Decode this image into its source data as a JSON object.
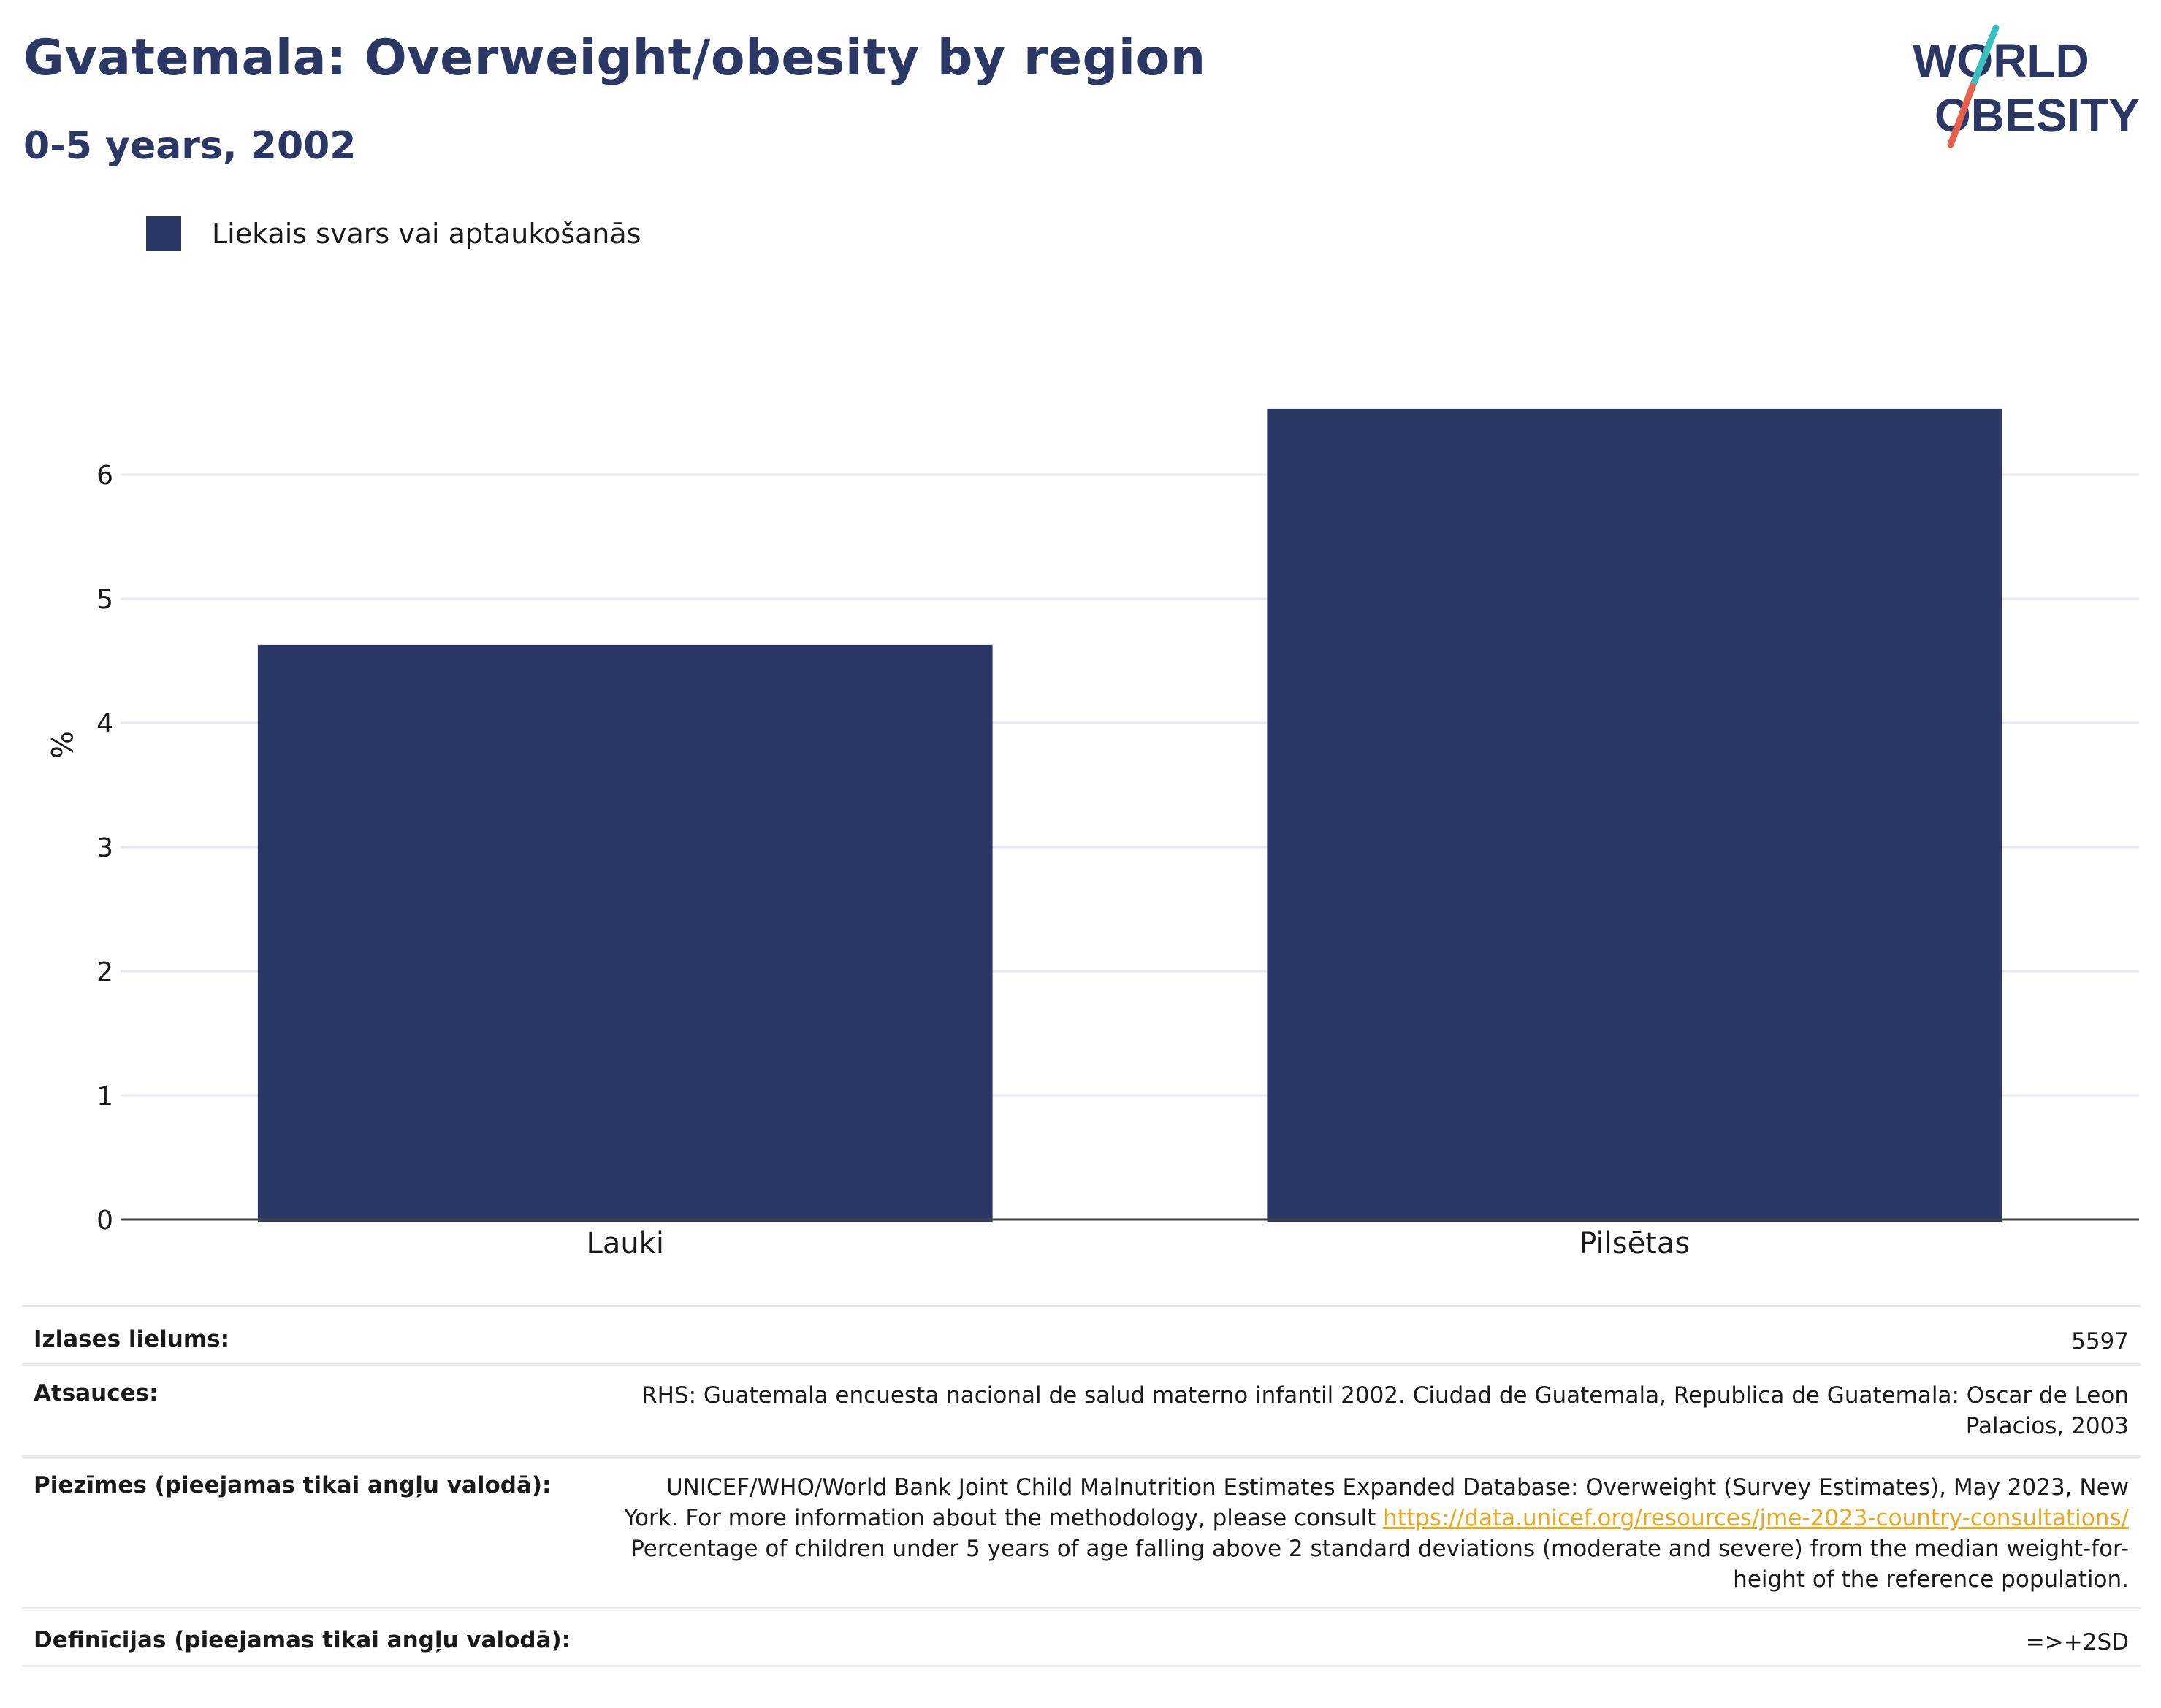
{
  "header": {
    "title": "Gvatemala: Overweight/obesity by region",
    "subtitle": "0-5 years, 2002"
  },
  "logo": {
    "line1": "WORLD",
    "line2": "OBESITY",
    "colors": {
      "text": "#2b3765",
      "slash_top": "#3bbfbf",
      "slash_bottom": "#e8604c"
    }
  },
  "chart_data": {
    "type": "bar",
    "categories": [
      "Lauki",
      "Pilsētas"
    ],
    "series": [
      {
        "name": "Liekais svars vai aptaukošanās",
        "values": [
          4.63,
          6.53
        ],
        "color": "#2b3765"
      }
    ],
    "ylabel": "%",
    "xlabel": "",
    "ylim": [
      0,
      7.2
    ],
    "yticks": [
      0,
      1,
      2,
      3,
      4,
      5,
      6
    ],
    "grid": true,
    "legend_position": "top-left"
  },
  "info": {
    "sample_size": {
      "label": "Izlases lielums:",
      "value": "5597"
    },
    "references": {
      "label": "Atsauces:",
      "value_line1": "RHS: Guatemala encuesta nacional de salud materno infantil 2002. Ciudad de Guatemala, Republica de Guatemala: Oscar de Leon",
      "value_line2": "Palacios, 2003"
    },
    "notes": {
      "label": "Piezīmes (pieejamas tikai angļu valodā):",
      "line1": "UNICEF/WHO/World Bank Joint Child Malnutrition Estimates Expanded Database: Overweight (Survey Estimates), May 2023, New",
      "line2_prefix": "York. For more information about the methodology, please consult ",
      "link": "https://data.unicef.org/resources/jme-2023-country-consultations/",
      "line3": "Percentage of children under 5 years of age falling above 2 standard deviations (moderate and severe) from the median weight-for-",
      "line4": "height of the reference population."
    },
    "definitions": {
      "label": "Definīcijas (pieejamas tikai angļu valodā):",
      "value": "=>+2SD"
    }
  }
}
